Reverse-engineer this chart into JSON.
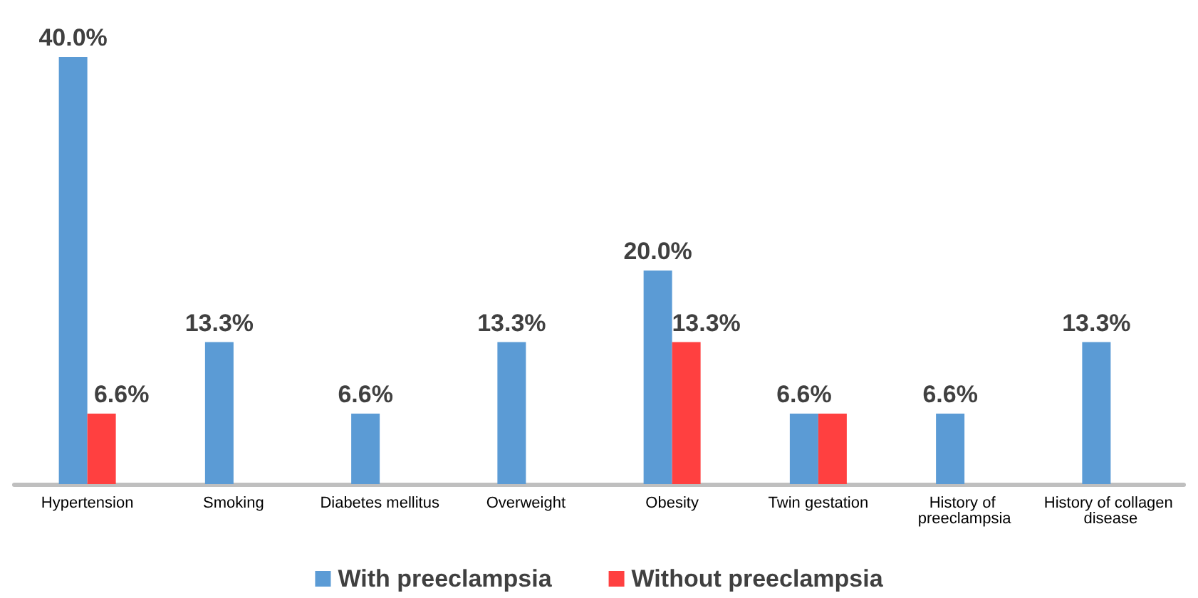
{
  "chart_data": {
    "type": "bar",
    "categories": [
      "Hypertension",
      "Smoking",
      "Diabetes mellitus",
      "Overweight",
      "Obesity",
      "Twin gestation",
      "History of preeclampsia",
      "History of collagen disease"
    ],
    "series": [
      {
        "name": "With preeclampsia",
        "color": "#5b9bd5",
        "values": [
          40.0,
          13.3,
          6.6,
          13.3,
          20.0,
          6.6,
          6.6,
          13.3
        ],
        "value_labels": [
          "40.0%",
          "13.3%",
          "6.6%",
          "13.3%",
          "20.0%",
          "6.6%",
          "6.6%",
          "13.3%"
        ]
      },
      {
        "name": "Without preeclampsia",
        "color": "#ff4040",
        "values": [
          6.6,
          0,
          0,
          0,
          13.3,
          6.6,
          0,
          0
        ],
        "value_labels": [
          "6.6%",
          null,
          null,
          null,
          "13.3%",
          null,
          null,
          null
        ]
      }
    ],
    "legend": "bottom"
  }
}
